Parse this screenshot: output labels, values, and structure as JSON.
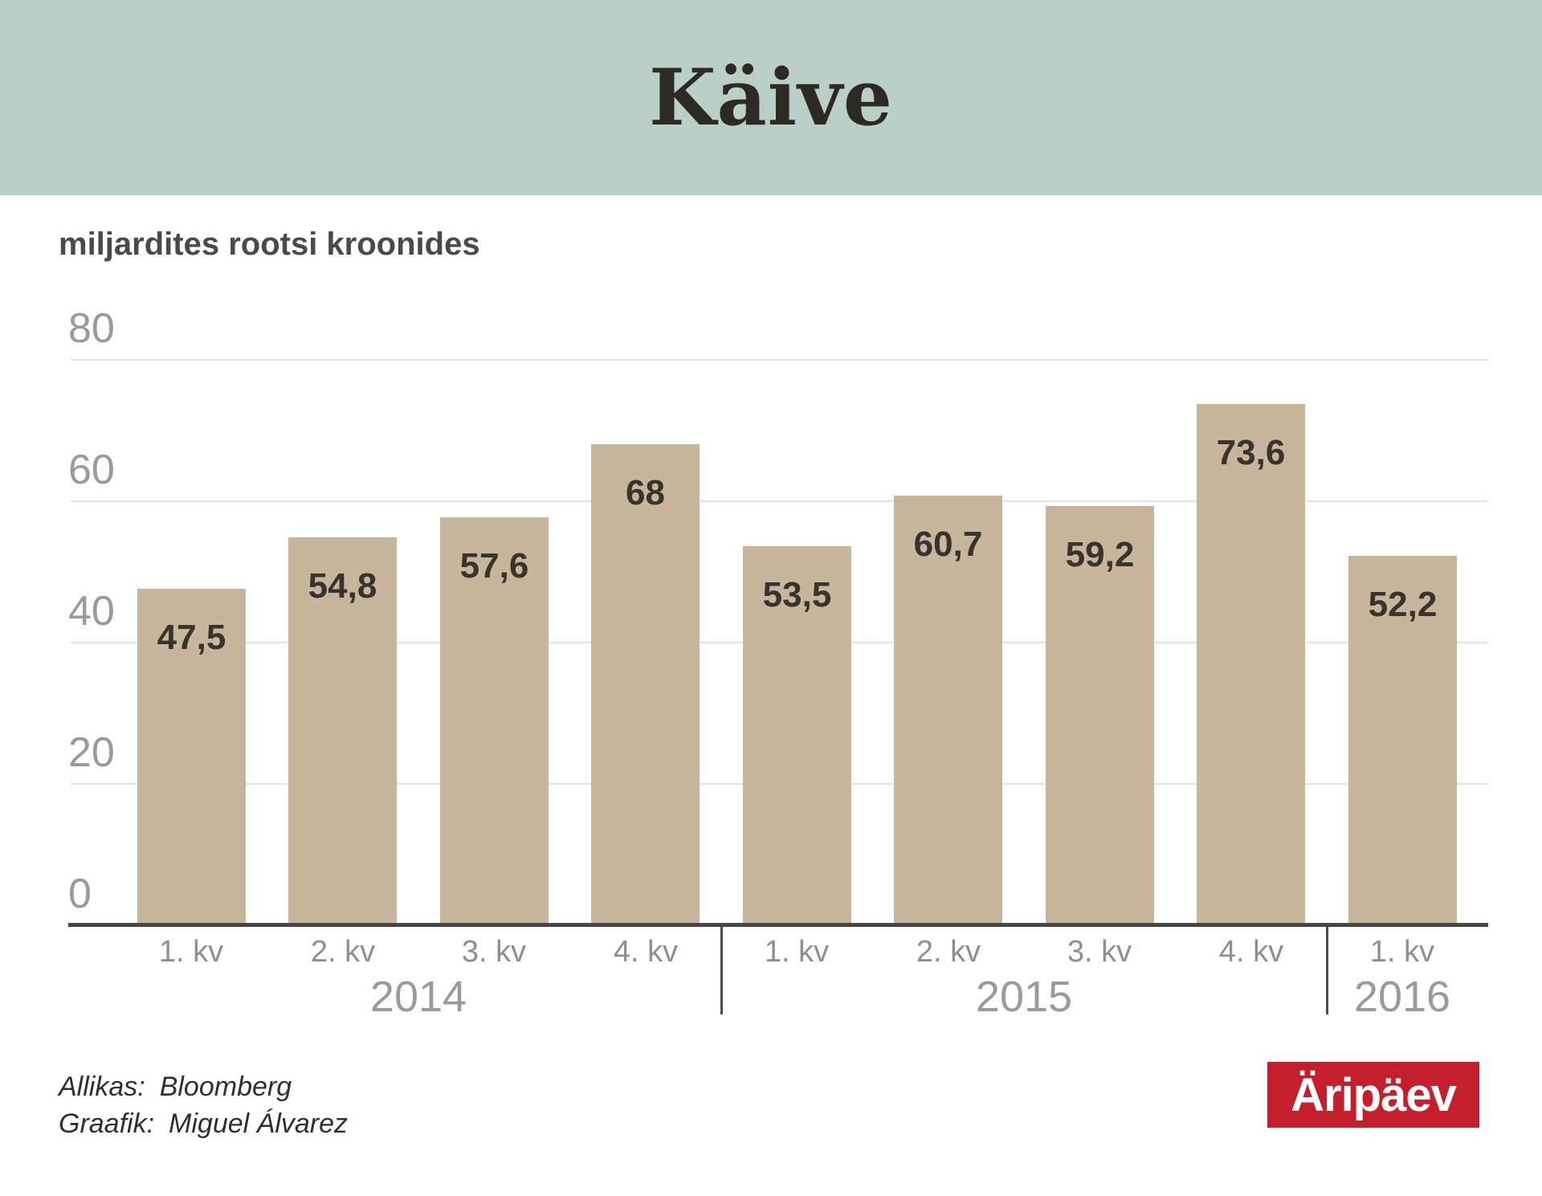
{
  "header": {
    "title": "Käive"
  },
  "chart_data": {
    "type": "bar",
    "title": "Käive",
    "subtitle": "miljardites rootsi kroonides",
    "categories": [
      "1. kv",
      "2. kv",
      "3. kv",
      "4. kv",
      "1. kv",
      "2. kv",
      "3. kv",
      "4. kv",
      "1. kv"
    ],
    "values": [
      47.5,
      54.8,
      57.6,
      68,
      53.5,
      60.7,
      59.2,
      73.6,
      52.2
    ],
    "value_labels": [
      "47,5",
      "54,8",
      "57,6",
      "68",
      "53,5",
      "60,7",
      "59,2",
      "73,6",
      "52,2"
    ],
    "year_groups": [
      {
        "label": "2014",
        "first_bar": 0,
        "last_bar": 3
      },
      {
        "label": "2015",
        "first_bar": 4,
        "last_bar": 7
      },
      {
        "label": "2016",
        "first_bar": 8,
        "last_bar": 8
      }
    ],
    "xlabel": "",
    "ylabel": "miljardites rootsi kroonides",
    "ylim": [
      0,
      80
    ],
    "yticks": [
      0,
      20,
      40,
      60,
      80
    ],
    "grid": true,
    "legend_position": "none",
    "bar_color": "#c7b59c",
    "value_label_color": "#38332b",
    "grid_color": "#e4e4e4",
    "axis_color": "#4a4742",
    "header_bg_color": "#b9cfc7",
    "logo_color": "#c51f2e"
  },
  "footer": {
    "source_label": "Allikas:",
    "source_value": "Bloomberg",
    "credit_label": "Graafik:",
    "credit_value": "Miguel Álvarez"
  },
  "logo": {
    "text": "Äripäev"
  }
}
